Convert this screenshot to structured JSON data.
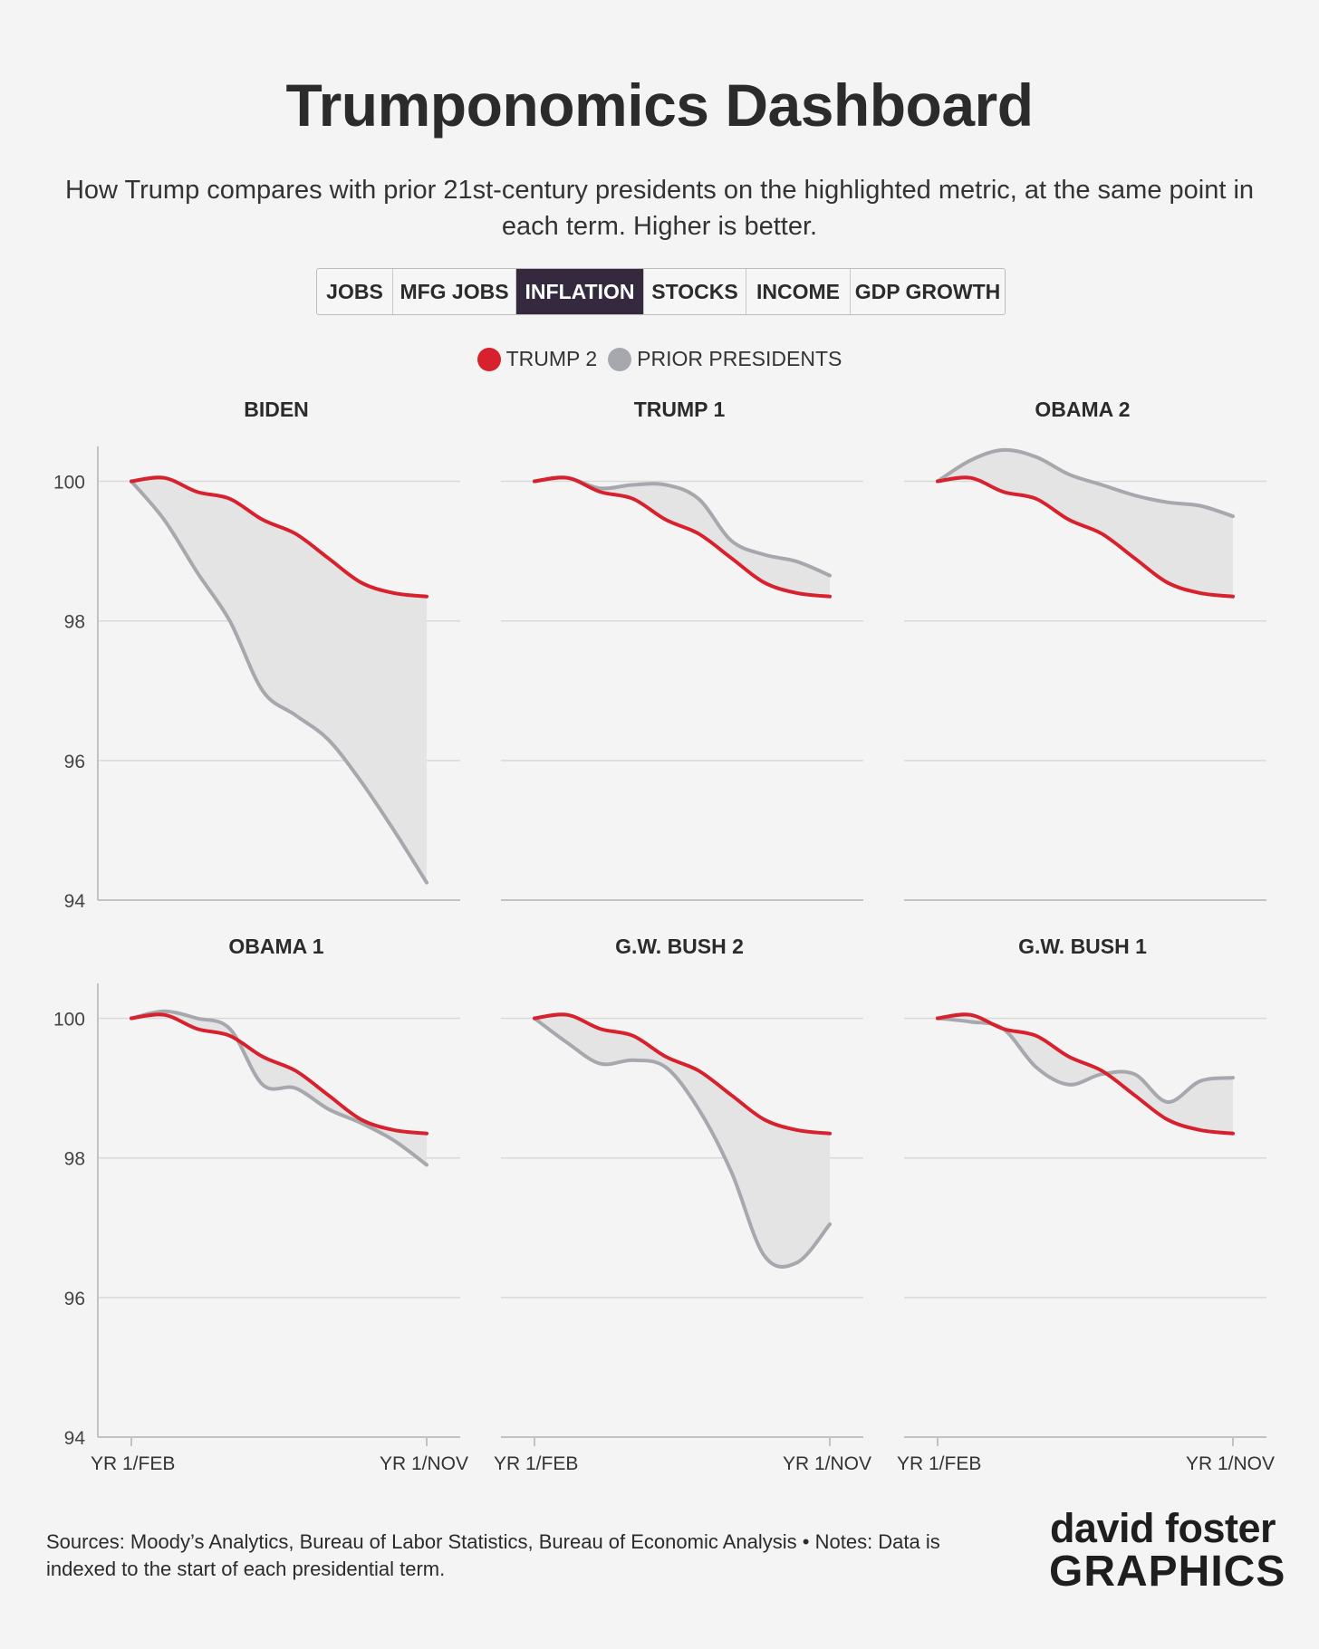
{
  "header": {
    "title": "Trumponomics Dashboard",
    "subtitle": "How Trump compares with prior 21st-century presidents on the highlighted metric, at the same point in each term. Higher is better."
  },
  "tabs": [
    {
      "label": "JOBS",
      "active": false
    },
    {
      "label": "MFG JOBS",
      "active": false
    },
    {
      "label": "INFLATION",
      "active": true
    },
    {
      "label": "STOCKS",
      "active": false
    },
    {
      "label": "INCOME",
      "active": false
    },
    {
      "label": "GDP GROWTH",
      "active": false
    }
  ],
  "legend": {
    "trump": "TRUMP 2",
    "prior": "PRIOR PRESIDENTS"
  },
  "colors": {
    "trump": "#d7222e",
    "prior": "#a6a8ad",
    "fill": "#e4e4e4",
    "grid": "#d9d9d9",
    "axis": "#c2c2c2",
    "active_tab": "#34293f"
  },
  "chart_data": {
    "type": "line",
    "x_labels": [
      "YR 1/FEB",
      "YR 1/NOV"
    ],
    "ylim": [
      94,
      100.5
    ],
    "yticks": [
      94,
      96,
      98,
      100
    ],
    "trump": [
      100.0,
      100.05,
      99.85,
      99.75,
      99.45,
      99.25,
      98.9,
      98.55,
      98.4,
      98.35
    ],
    "panels": [
      {
        "name": "BIDEN",
        "values": [
          100.0,
          99.45,
          98.7,
          98.0,
          97.0,
          96.65,
          96.3,
          95.7,
          95.0,
          94.25
        ]
      },
      {
        "name": "TRUMP 1",
        "values": [
          100.0,
          100.05,
          99.9,
          99.95,
          99.95,
          99.75,
          99.15,
          98.95,
          98.85,
          98.65
        ]
      },
      {
        "name": "OBAMA 2",
        "values": [
          100.0,
          100.3,
          100.45,
          100.35,
          100.1,
          99.95,
          99.8,
          99.7,
          99.65,
          99.5
        ]
      },
      {
        "name": "OBAMA 1",
        "values": [
          100.0,
          100.1,
          100.0,
          99.85,
          99.05,
          99.0,
          98.7,
          98.5,
          98.25,
          97.9
        ]
      },
      {
        "name": "G.W. BUSH 2",
        "values": [
          100.0,
          99.65,
          99.35,
          99.4,
          99.3,
          98.7,
          97.8,
          96.6,
          96.5,
          97.05
        ]
      },
      {
        "name": "G.W. BUSH 1",
        "values": [
          100.0,
          99.95,
          99.85,
          99.3,
          99.05,
          99.2,
          99.2,
          98.8,
          99.1,
          99.15
        ]
      }
    ]
  },
  "footer": {
    "sources": "Sources: Moody’s Analytics, Bureau of Labor Statistics, Bureau of Economic Analysis • Notes: Data is indexed to the start of each presidential term."
  },
  "brand": {
    "line1": "david foster",
    "line2": "GRAPHICS"
  }
}
